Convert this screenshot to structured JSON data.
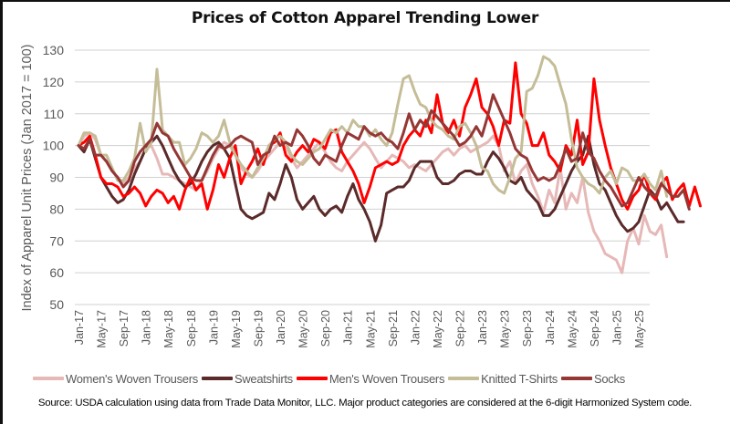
{
  "chart_data": {
    "type": "line",
    "title": "Prices of Cotton Apparel Trending Lower",
    "xlabel": "",
    "ylabel": "Index of Apparel Unit Prices (Jan 2017 = 100)",
    "ylim": [
      50,
      130
    ],
    "yticks": [
      50,
      60,
      70,
      80,
      90,
      100,
      110,
      120,
      130
    ],
    "grid": true,
    "legend_position": "bottom",
    "x_start": "Jan-17",
    "x_tick_labels": [
      "Jan-17",
      "May-17",
      "Sep-17",
      "Jan-18",
      "May-18",
      "Sep-18",
      "Jan-19",
      "May-19",
      "Sep-19",
      "Jan-20",
      "May-20",
      "Sep-20",
      "Jan-21",
      "May-21",
      "Sep-21",
      "Jan-22",
      "May-22",
      "Sep-22",
      "Jan-23",
      "May-23",
      "Sep-23",
      "Jan-24",
      "May-24",
      "Sep-24",
      "Jan-25",
      "May-25"
    ],
    "series": [
      {
        "name": "Women's Woven Trousers",
        "color": "#e6b8b7",
        "values": [
          100,
          103,
          104,
          102,
          97,
          95,
          92,
          90,
          88,
          90,
          93,
          95,
          99,
          100,
          96,
          91,
          91,
          90,
          89,
          88,
          87,
          86,
          89,
          92,
          96,
          99,
          101,
          100,
          97,
          93,
          91,
          90,
          92,
          95,
          97,
          99,
          101,
          100,
          96,
          93,
          95,
          97,
          99,
          101,
          98,
          95,
          93,
          92,
          95,
          97,
          99,
          101,
          99,
          96,
          93,
          95,
          97,
          96,
          95,
          93,
          94,
          93,
          92,
          94,
          96,
          98,
          99,
          97,
          99,
          100,
          98,
          99,
          100,
          101,
          103,
          100,
          92,
          95,
          88,
          92,
          94,
          88,
          84,
          79,
          86,
          82,
          93,
          80,
          85,
          82,
          90,
          79,
          73,
          70,
          66,
          65,
          64,
          60,
          70,
          74,
          69,
          78,
          73,
          72,
          75,
          65
        ]
      },
      {
        "name": "Sweatshirts",
        "color": "#5b2a2a",
        "values": [
          100,
          98,
          102,
          96,
          90,
          87,
          84,
          82,
          83,
          86,
          91,
          95,
          99,
          101,
          103,
          100,
          96,
          92,
          89,
          87,
          88,
          91,
          95,
          98,
          100,
          101,
          99,
          96,
          88,
          80,
          78,
          77,
          78,
          79,
          85,
          83,
          88,
          94,
          90,
          83,
          80,
          82,
          84,
          80,
          78,
          80,
          81,
          79,
          84,
          88,
          83,
          80,
          76,
          70,
          75,
          85,
          86,
          87,
          87,
          89,
          93,
          95,
          95,
          95,
          90,
          88,
          88,
          89,
          91,
          92,
          92,
          91,
          91,
          95,
          98,
          96,
          93,
          89,
          88,
          90,
          86,
          84,
          82,
          78,
          78,
          80,
          84,
          88,
          92,
          95,
          97,
          103,
          94,
          88,
          86,
          82,
          78,
          75,
          73,
          74,
          76,
          81,
          86,
          84,
          80,
          82,
          79,
          76,
          76
        ]
      },
      {
        "name": "Men's Woven Trousers",
        "color": "#ff0000",
        "values": [
          100,
          101,
          103,
          97,
          90,
          88,
          88,
          87,
          84,
          85,
          87,
          85,
          81,
          84,
          86,
          85,
          82,
          84,
          80,
          86,
          90,
          86,
          88,
          80,
          86,
          94,
          90,
          96,
          100,
          88,
          92,
          95,
          99,
          94,
          100,
          101,
          104,
          97,
          95,
          98,
          100,
          98,
          102,
          101,
          99,
          104,
          105,
          98,
          95,
          92,
          88,
          82,
          87,
          93,
          94,
          95,
          94,
          95,
          100,
          103,
          105,
          103,
          108,
          104,
          116,
          107,
          104,
          108,
          103,
          112,
          116,
          121,
          112,
          110,
          106,
          100,
          108,
          107,
          126,
          110,
          107,
          100,
          100,
          104,
          97,
          95,
          92,
          100,
          97,
          108,
          94,
          98,
          121,
          108,
          100,
          93,
          88,
          83,
          80,
          84,
          86,
          91,
          85,
          83,
          88,
          90,
          83,
          86,
          88,
          81,
          87,
          81
        ]
      },
      {
        "name": "Knitted T-Shirts",
        "color": "#c4bd97",
        "values": [
          100,
          104,
          104,
          103,
          97,
          97,
          93,
          89,
          89,
          92,
          96,
          107,
          98,
          101,
          124,
          105,
          103,
          101,
          101,
          94,
          96,
          99,
          104,
          103,
          101,
          103,
          108,
          101,
          97,
          94,
          92,
          90,
          93,
          96,
          100,
          102,
          103,
          101,
          97,
          95,
          94,
          96,
          98,
          99,
          102,
          105,
          104,
          106,
          104,
          108,
          106,
          106,
          103,
          105,
          102,
          100,
          104,
          113,
          121,
          122,
          117,
          113,
          112,
          108,
          106,
          105,
          103,
          102,
          106,
          107,
          104,
          100,
          93,
          92,
          88,
          86,
          85,
          90,
          96,
          98,
          117,
          118,
          122,
          128,
          127,
          125,
          119,
          113,
          102,
          93,
          90,
          88,
          87,
          85,
          90,
          92,
          88,
          93,
          92,
          89,
          89,
          91,
          88,
          86,
          92,
          84
        ]
      },
      {
        "name": "Socks",
        "color": "#953735",
        "values": [
          100,
          99,
          102,
          97,
          97,
          95,
          92,
          90,
          87,
          89,
          95,
          98,
          100,
          102,
          107,
          104,
          103,
          99,
          96,
          93,
          90,
          89,
          89,
          93,
          97,
          100,
          99,
          100,
          102,
          103,
          102,
          101,
          94,
          97,
          98,
          103,
          100,
          101,
          100,
          105,
          103,
          100,
          96,
          94,
          97,
          96,
          95,
          100,
          104,
          103,
          102,
          106,
          104,
          103,
          104,
          102,
          101,
          99,
          104,
          110,
          105,
          108,
          106,
          111,
          109,
          107,
          105,
          103,
          100,
          101,
          103,
          106,
          103,
          109,
          116,
          112,
          108,
          104,
          99,
          97,
          96,
          92,
          89,
          90,
          89,
          90,
          94,
          99,
          95,
          96,
          104,
          98,
          96,
          92,
          89,
          87,
          84,
          81,
          82,
          86,
          90,
          87,
          85,
          84,
          88,
          86,
          84,
          84,
          86,
          80
        ]
      }
    ]
  },
  "legend": {
    "items": [
      {
        "label": "Women's Woven Trousers"
      },
      {
        "label": "Sweatshirts"
      },
      {
        "label": "Men's Woven Trousers"
      },
      {
        "label": "Knitted T-Shirts"
      },
      {
        "label": "Socks"
      }
    ]
  },
  "source_note": "Source: USDA calculation using data from Trade Data Monitor, LLC. Major product categories are considered at the 6-digit Harmonized System code."
}
